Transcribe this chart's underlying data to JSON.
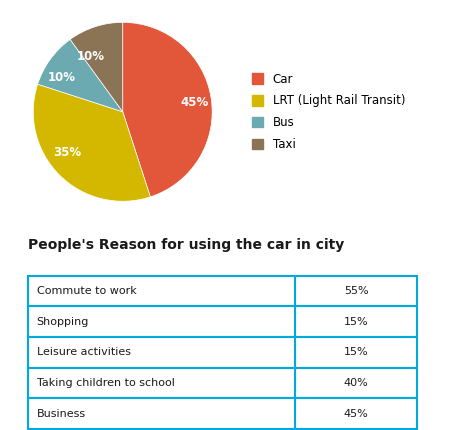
{
  "pie_labels": [
    "Car",
    "LRT (Light Rail Transit)",
    "Bus",
    "Taxi"
  ],
  "pie_values": [
    45,
    35,
    10,
    10
  ],
  "pie_colors": [
    "#E2563A",
    "#D4B800",
    "#6BAAB0",
    "#8B7355"
  ],
  "pie_label_texts": [
    "45%",
    "35%",
    "10%",
    "10%"
  ],
  "legend_labels": [
    "Car",
    "LRT (Light Rail Transit)",
    "Bus",
    "Taxi"
  ],
  "table_title": "People's Reason for using the car in city",
  "table_rows": [
    [
      "Commute to work",
      "55%"
    ],
    [
      "Shopping",
      "15%"
    ],
    [
      "Leisure activities",
      "15%"
    ],
    [
      "Taking children to school",
      "40%"
    ],
    [
      "Business",
      "45%"
    ]
  ],
  "table_border_color": "#00AADD",
  "background_color": "#FFFFFF"
}
